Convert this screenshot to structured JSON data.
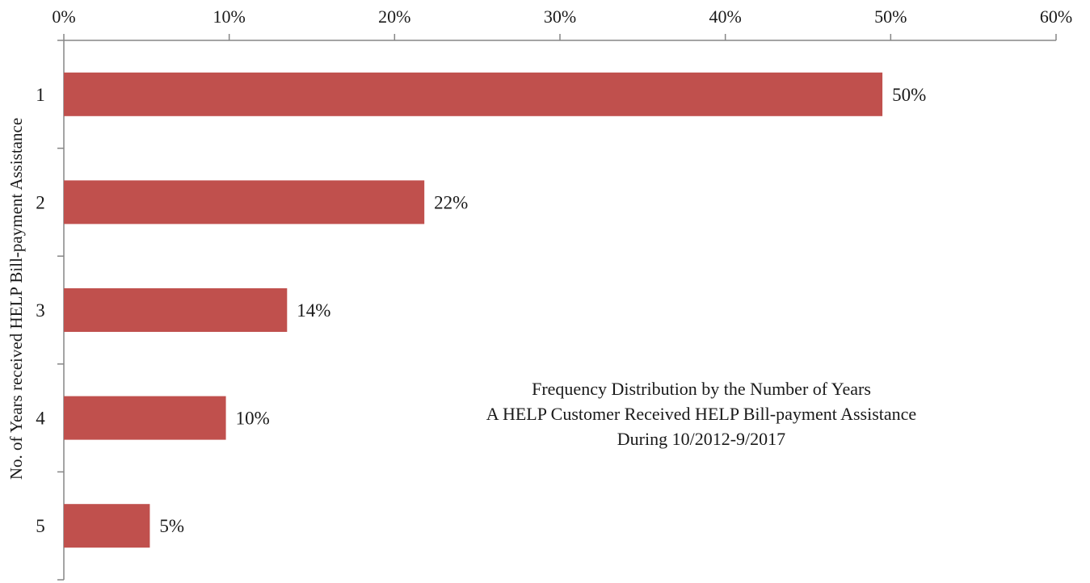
{
  "chart_data": {
    "type": "bar",
    "orientation": "horizontal",
    "title_lines": [
      "Frequency Distribution by the Number of Years",
      "A HELP Customer Received HELP Bill-payment Assistance",
      "During 10/2012-9/2017"
    ],
    "xlabel": "",
    "ylabel": "No. of Years received HELP Bill-payment  Assistance",
    "categories": [
      "1",
      "2",
      "3",
      "4",
      "5"
    ],
    "values": [
      49.5,
      21.8,
      13.5,
      9.8,
      5.2
    ],
    "data_labels": [
      "50%",
      "22%",
      "14%",
      "10%",
      "5%"
    ],
    "xlim": [
      0,
      60
    ],
    "x_ticks": [
      0,
      10,
      20,
      30,
      40,
      50,
      60
    ],
    "x_tick_labels": [
      "0%",
      "10%",
      "20%",
      "30%",
      "40%",
      "50%",
      "60%"
    ],
    "x_axis_position": "top",
    "grid": false,
    "legend": "none",
    "bar_color": "#c0504d",
    "axis_color": "#868686"
  }
}
